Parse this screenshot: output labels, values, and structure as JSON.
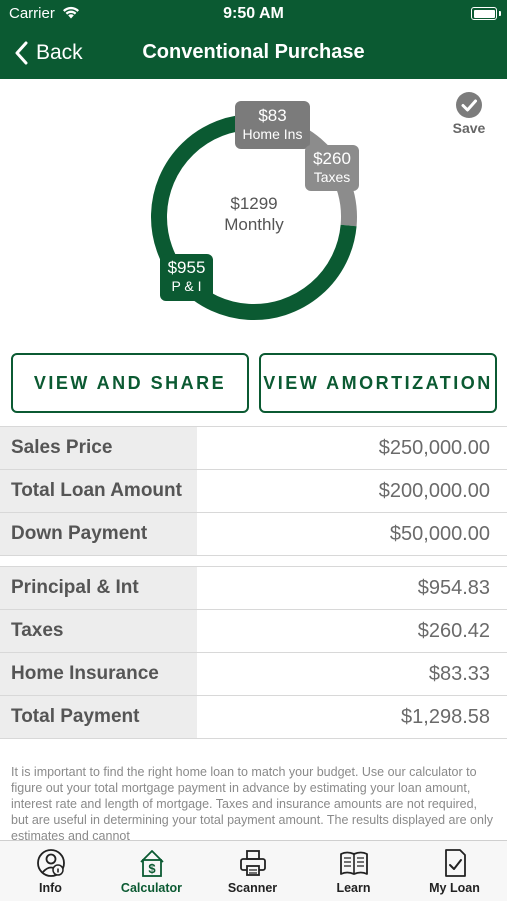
{
  "status": {
    "carrier": "Carrier",
    "time": "9:50 AM"
  },
  "nav": {
    "back_label": "Back",
    "title": "Conventional Purchase"
  },
  "chart_data": {
    "type": "pie",
    "variant": "donut",
    "center_amount": "$1299",
    "center_label": "Monthly",
    "slices": [
      {
        "label": "P & I",
        "amount": "$955",
        "value": 955,
        "color": "#0b5a32"
      },
      {
        "label": "Taxes",
        "amount": "$260",
        "value": 260,
        "color": "#8c8c8c"
      },
      {
        "label": "Home Ins",
        "amount": "$83",
        "value": 83,
        "color": "#7b7b7b"
      }
    ]
  },
  "save": {
    "label": "Save"
  },
  "buttons": {
    "view_share": "VIEW AND SHARE",
    "view_amortization": "VIEW AMORTIZATION"
  },
  "loan_rows": [
    {
      "label": "Sales Price",
      "value": "$250,000.00"
    },
    {
      "label": "Total Loan Amount",
      "value": "$200,000.00"
    },
    {
      "label": "Down Payment",
      "value": "$50,000.00"
    }
  ],
  "payment_rows": [
    {
      "label": "Principal & Int",
      "value": "$954.83"
    },
    {
      "label": "Taxes",
      "value": "$260.42"
    },
    {
      "label": "Home Insurance",
      "value": "$83.33"
    },
    {
      "label": "Total Payment",
      "value": "$1,298.58"
    }
  ],
  "disclaimer": "It is important to find the right home loan to match your budget. Use our calculator to figure out your total mortgage payment in advance by estimating your loan amount, interest rate and length of mortgage. Taxes and insurance amounts are not required, but are useful in determining your total payment amount.  The results displayed are only estimates and cannot",
  "tabs": [
    {
      "label": "Info",
      "icon": "info-person-icon"
    },
    {
      "label": "Calculator",
      "icon": "calculator-icon"
    },
    {
      "label": "Scanner",
      "icon": "printer-scanner-icon"
    },
    {
      "label": "Learn",
      "icon": "book-icon"
    },
    {
      "label": "My Loan",
      "icon": "document-check-icon"
    }
  ],
  "colors": {
    "brand": "#0b5a32",
    "gray_dark": "#7b7b7b",
    "gray_light": "#8c8c8c"
  }
}
